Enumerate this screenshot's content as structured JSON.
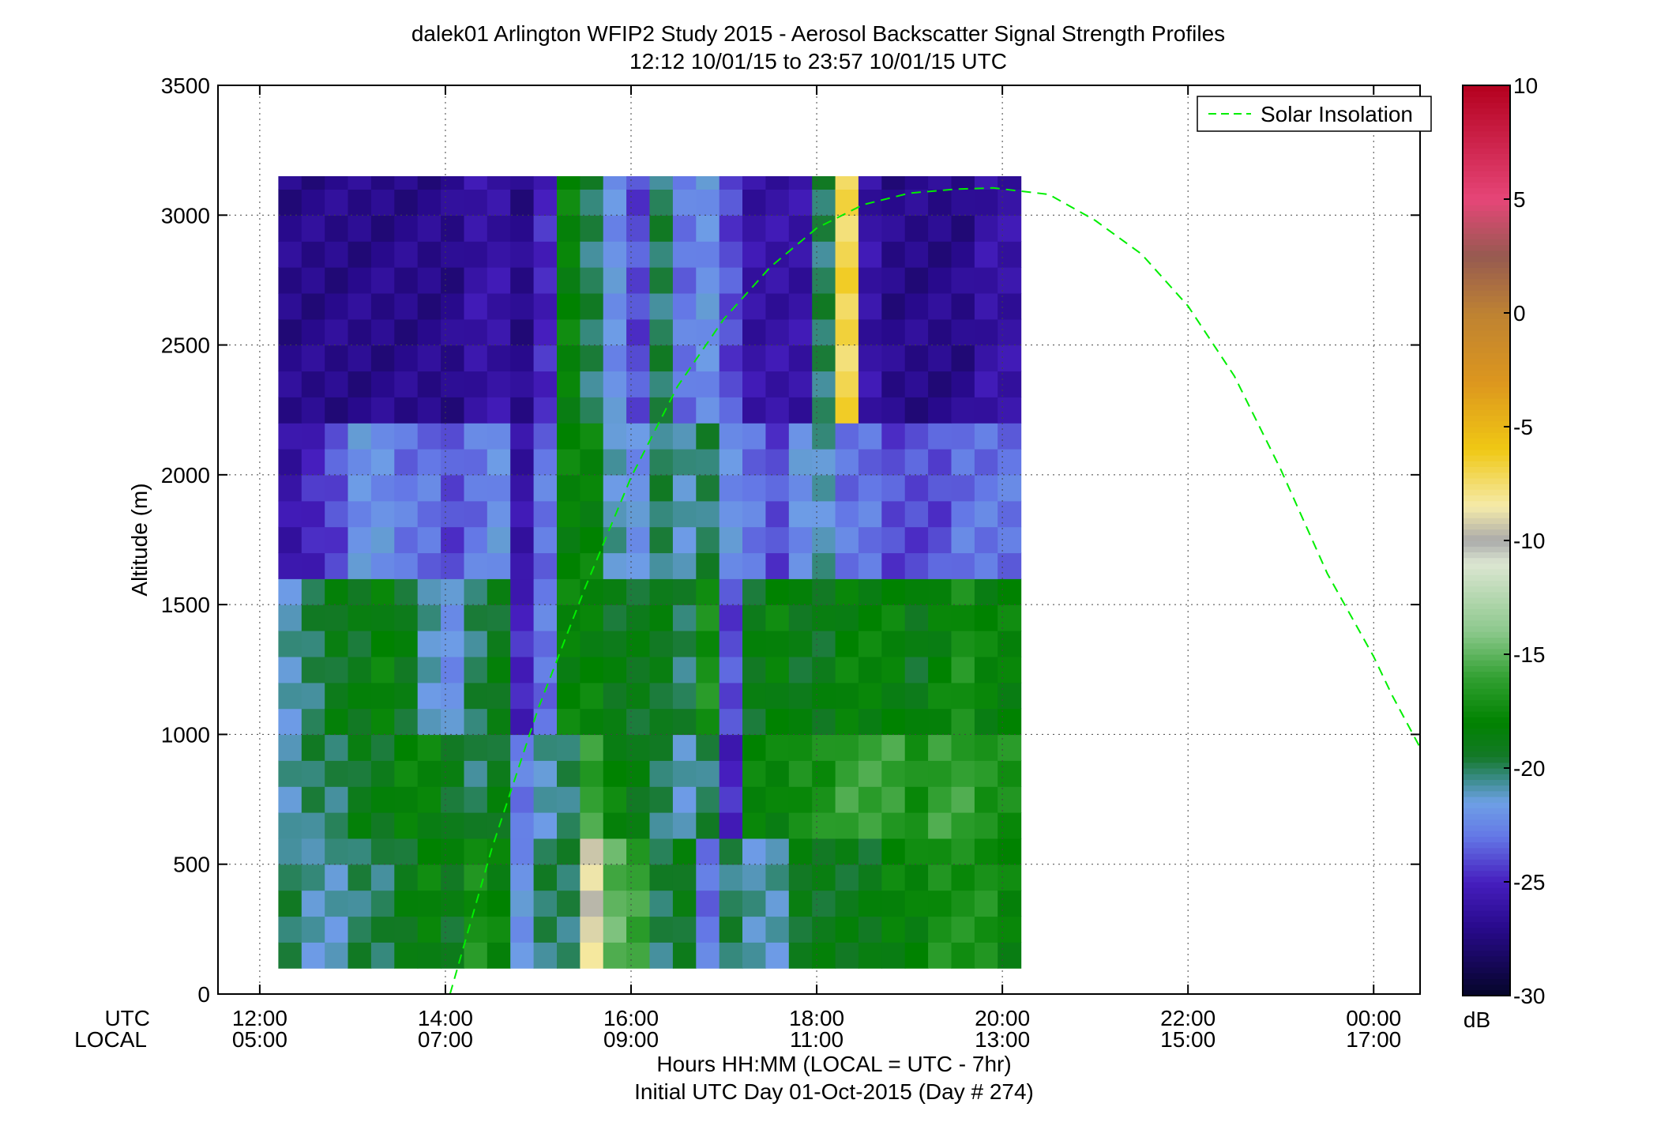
{
  "chart_data": {
    "type": "heatmap",
    "title": "dalek01 Arlington WFIP2 Study 2015 - Aerosol Backscatter Signal Strength Profiles",
    "subtitle": "12:12 10/01/15 to 23:57 10/01/15  UTC",
    "ylabel": "Altitude (m)",
    "xlabel": "Hours HH:MM  (LOCAL = UTC - 7hr)",
    "xlabel2": "Initial UTC Day 01-Oct-2015 (Day # 274)",
    "x_row_labels": {
      "utc": "UTC",
      "local": "LOCAL"
    },
    "xlim_hours_utc": [
      11.55,
      24.5
    ],
    "ylim": [
      0,
      3500
    ],
    "x_ticks_utc": [
      "12:00",
      "14:00",
      "16:00",
      "18:00",
      "20:00",
      "22:00",
      "00:00"
    ],
    "x_ticks_local": [
      "05:00",
      "07:00",
      "09:00",
      "11:00",
      "13:00",
      "15:00",
      "17:00"
    ],
    "x_tick_hours": [
      12,
      14,
      16,
      18,
      20,
      22,
      24
    ],
    "y_ticks": [
      0,
      500,
      1000,
      1500,
      2000,
      2500,
      3000,
      3500
    ],
    "grid": true,
    "colorbar": {
      "label": "dB",
      "range": [
        -30,
        10
      ],
      "ticks": [
        10,
        5,
        0,
        -5,
        -10,
        -15,
        -20,
        -25,
        -30
      ]
    },
    "legend": {
      "entries": [
        "Solar Insolation"
      ],
      "location": "top-right"
    },
    "solar_insolation": {
      "style": "dashed",
      "color": "#00ee00",
      "x": [
        14.05,
        14.5,
        15.0,
        15.5,
        16.0,
        16.5,
        17.0,
        17.5,
        18.0,
        18.5,
        19.0,
        19.5,
        19.9,
        20.5,
        21.0,
        21.5,
        22.0,
        22.5,
        23.0,
        23.5,
        24.0,
        24.2,
        24.5
      ],
      "y": [
        0,
        560,
        1100,
        1560,
        1990,
        2340,
        2600,
        2800,
        2950,
        3040,
        3085,
        3100,
        3105,
        3080,
        2980,
        2850,
        2650,
        2380,
        2020,
        1620,
        1300,
        1150,
        950
      ]
    },
    "profiles": {
      "note": "dB per column (UTC hour start, 0.25 h bins) and altitude band (m)",
      "bands": [
        {
          "z": [
            100,
            600
          ],
          "dB": [
            -20,
            -21,
            -21,
            -20,
            -20,
            -19,
            -18,
            -19,
            -17,
            -18,
            -22,
            -20,
            -20,
            -9,
            -15,
            -16,
            -20,
            -19,
            -23,
            -20,
            -21,
            -21,
            -19,
            -19,
            -19,
            -19,
            -18,
            -18,
            -17,
            -17,
            -17,
            -18
          ]
        },
        {
          "z": [
            600,
            1000
          ],
          "dB": [
            -21,
            -20,
            -20,
            -19,
            -19,
            -18,
            -18,
            -19,
            -20,
            -19,
            -23,
            -21,
            -20,
            -16,
            -18,
            -19,
            -20,
            -21,
            -20,
            -25,
            -18,
            -18,
            -17,
            -17,
            -16,
            -16,
            -16,
            -17,
            -16,
            -16,
            -17,
            -17
          ]
        },
        {
          "z": [
            1000,
            1600
          ],
          "dB": [
            -21,
            -20,
            -19,
            -19,
            -18,
            -19,
            -21,
            -22,
            -20,
            -19,
            -25,
            -23,
            -18,
            -18,
            -19,
            -19,
            -19,
            -20,
            -17,
            -24,
            -19,
            -18,
            -19,
            -19,
            -18,
            -18,
            -18,
            -19,
            -18,
            -17,
            -18,
            -18
          ]
        },
        {
          "z": [
            1600,
            2200
          ],
          "dB": [
            -26,
            -25,
            -24,
            -22,
            -22,
            -23,
            -23,
            -24,
            -23,
            -22,
            -26,
            -23,
            -18,
            -18,
            -21,
            -22,
            -20,
            -21,
            -20,
            -22,
            -23,
            -24,
            -22,
            -21,
            -23,
            -23,
            -24,
            -24,
            -24,
            -23,
            -23,
            -23
          ]
        },
        {
          "z": [
            2200,
            3150
          ],
          "dB": [
            -27,
            -27,
            -27,
            -27,
            -27,
            -27,
            -27,
            -27,
            -26,
            -26,
            -27,
            -25,
            -18,
            -20,
            -22,
            -24,
            -20,
            -23,
            -22,
            -24,
            -26,
            -26,
            -26,
            -20,
            -7,
            -26,
            -27,
            -27,
            -27,
            -27,
            -26,
            -26
          ]
        }
      ]
    }
  }
}
